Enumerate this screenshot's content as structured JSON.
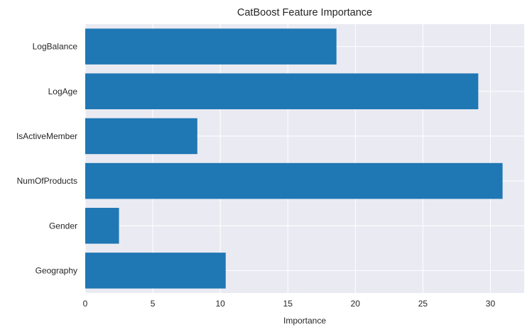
{
  "chart_data": {
    "type": "bar",
    "orientation": "horizontal",
    "title": "CatBoost Feature Importance",
    "xlabel": "Importance",
    "ylabel": "",
    "categories": [
      "Geography",
      "Gender",
      "NumOfProducts",
      "IsActiveMember",
      "LogAge",
      "LogBalance"
    ],
    "values": [
      10.4,
      2.5,
      30.9,
      8.3,
      29.1,
      18.6
    ],
    "xlim": [
      0,
      32.5
    ],
    "xticks": [
      0,
      5,
      10,
      15,
      20,
      25,
      30
    ],
    "xtick_labels": [
      "0",
      "5",
      "10",
      "15",
      "20",
      "25",
      "30"
    ],
    "grid": true,
    "bar_color": "#1f77b4",
    "background_color": "#eaeaf2",
    "grid_color": "#ffffff"
  }
}
